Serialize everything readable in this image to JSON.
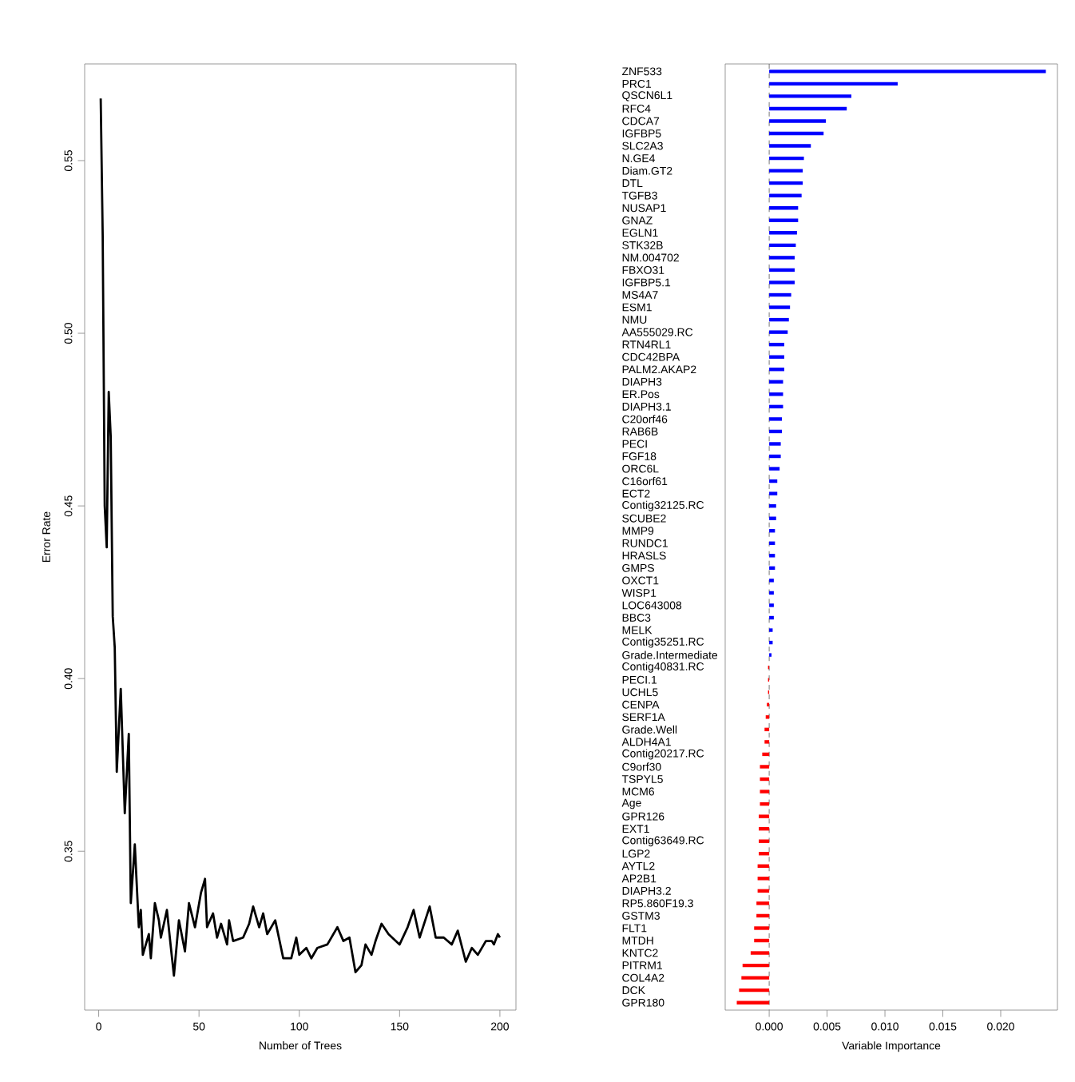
{
  "chart_data": [
    {
      "type": "line",
      "xlabel": "Number of Trees",
      "ylabel": "Error Rate",
      "x": [
        1,
        2,
        3,
        4,
        5,
        6,
        7,
        8,
        9,
        11,
        13,
        15,
        16,
        18,
        20,
        21,
        22,
        25,
        26,
        28,
        30,
        31,
        34,
        36,
        37.5,
        40,
        43,
        45,
        48,
        51,
        53,
        54,
        57,
        59,
        61,
        64,
        65,
        67,
        72,
        75,
        77,
        80,
        82,
        84,
        88,
        92,
        96,
        98.5,
        100,
        103.5,
        106,
        109,
        114,
        119,
        122,
        125,
        128,
        131,
        133,
        136,
        138,
        141,
        144.5,
        150,
        154,
        157,
        160,
        165,
        168,
        172,
        176,
        179,
        183,
        186,
        189,
        193,
        196,
        197,
        199,
        200
      ],
      "series": [
        {
          "color": "#000000",
          "values": [
            0.568,
            0.528,
            0.45,
            0.438,
            0.483,
            0.47,
            0.418,
            0.409,
            0.373,
            0.397,
            0.361,
            0.384,
            0.335,
            0.352,
            0.328,
            0.333,
            0.32,
            0.326,
            0.319,
            0.335,
            0.33,
            0.325,
            0.333,
            0.322,
            0.314,
            0.33,
            0.321,
            0.335,
            0.328,
            0.338,
            0.342,
            0.328,
            0.332,
            0.325,
            0.329,
            0.323,
            0.33,
            0.324,
            0.325,
            0.329,
            0.334,
            0.328,
            0.332,
            0.326,
            0.33,
            0.319,
            0.319,
            0.325,
            0.32,
            0.322,
            0.319,
            0.322,
            0.323,
            0.328,
            0.324,
            0.325,
            0.315,
            0.317,
            0.323,
            0.32,
            0.324,
            0.329,
            0.326,
            0.323,
            0.328,
            0.333,
            0.325,
            0.334,
            0.325,
            0.325,
            0.323,
            0.327,
            0.318,
            0.322,
            0.32,
            0.324,
            0.324,
            0.323,
            0.326,
            0.325
          ]
        }
      ],
      "xlim": [
        -7,
        208
      ],
      "ylim": [
        0.304,
        0.578
      ],
      "xticks": [
        0,
        50,
        100,
        150,
        200
      ],
      "yticks": [
        {
          "value": 0.35,
          "label": "0.35"
        },
        {
          "value": 0.4,
          "label": "0.40"
        },
        {
          "value": 0.45,
          "label": "0.45"
        },
        {
          "value": 0.5,
          "label": "0.50"
        },
        {
          "value": 0.55,
          "label": "0.55"
        }
      ],
      "marker": "none",
      "line_style": "solid",
      "grid": false
    },
    {
      "type": "bar",
      "orientation": "horizontal",
      "xlabel": "Variable Importance",
      "categories": [
        "ZNF533",
        "PRC1",
        "QSCN6L1",
        "RFC4",
        "CDCA7",
        "IGFBP5",
        "SLC2A3",
        "N.GE4",
        "Diam.GT2",
        "DTL",
        "TGFB3",
        "NUSAP1",
        "GNAZ",
        "EGLN1",
        "STK32B",
        "NM.004702",
        "FBXO31",
        "IGFBP5.1",
        "MS4A7",
        "ESM1",
        "NMU",
        "AA555029.RC",
        "RTN4RL1",
        "CDC42BPA",
        "PALM2.AKAP2",
        "DIAPH3",
        "ER.Pos",
        "DIAPH3.1",
        "C20orf46",
        "RAB6B",
        "PECI",
        "FGF18",
        "ORC6L",
        "C16orf61",
        "ECT2",
        "Contig32125.RC",
        "SCUBE2",
        "MMP9",
        "RUNDC1",
        "HRASLS",
        "GMPS",
        "OXCT1",
        "WISP1",
        "LOC643008",
        "BBC3",
        "MELK",
        "Contig35251.RC",
        "Grade.Intermediate",
        "Contig40831.RC",
        "PECI.1",
        "UCHL5",
        "CENPA",
        "SERF1A",
        "Grade.Well",
        "ALDH4A1",
        "Contig20217.RC",
        "C9orf30",
        "TSPYL5",
        "MCM6",
        "Age",
        "GPR126",
        "EXT1",
        "Contig63649.RC",
        "LGP2",
        "AYTL2",
        "AP2B1",
        "DIAPH3.2",
        "RP5.860F19.3",
        "GSTM3",
        "FLT1",
        "MTDH",
        "KNTC2",
        "PITRM1",
        "COL4A2",
        "DCK",
        "GPR180"
      ],
      "values": [
        0.0239,
        0.0111,
        0.0071,
        0.0067,
        0.0049,
        0.0047,
        0.0036,
        0.003,
        0.0029,
        0.0029,
        0.0028,
        0.0025,
        0.0025,
        0.0024,
        0.0023,
        0.0022,
        0.0022,
        0.0022,
        0.0019,
        0.0018,
        0.0017,
        0.0016,
        0.0013,
        0.0013,
        0.0013,
        0.0012,
        0.0012,
        0.0012,
        0.0011,
        0.0011,
        0.001,
        0.001,
        0.0009,
        0.0007,
        0.0007,
        0.0006,
        0.0006,
        0.0005,
        0.0005,
        0.0005,
        0.0005,
        0.0004,
        0.0004,
        0.0004,
        0.0004,
        0.0003,
        0.0003,
        0.0002,
        -0.0001,
        -0.0001,
        -0.0001,
        -0.0002,
        -0.0003,
        -0.0004,
        -0.0004,
        -0.0006,
        -0.0008,
        -0.0008,
        -0.0008,
        -0.0008,
        -0.0009,
        -0.0009,
        -0.0009,
        -0.0009,
        -0.001,
        -0.001,
        -0.001,
        -0.0011,
        -0.0011,
        -0.0013,
        -0.0013,
        -0.0016,
        -0.0023,
        -0.0024,
        -0.0026,
        -0.0028
      ],
      "colors": [
        "#0000ff",
        "#0000ff",
        "#0000ff",
        "#0000ff",
        "#0000ff",
        "#0000ff",
        "#0000ff",
        "#0000ff",
        "#0000ff",
        "#0000ff",
        "#0000ff",
        "#0000ff",
        "#0000ff",
        "#0000ff",
        "#0000ff",
        "#0000ff",
        "#0000ff",
        "#0000ff",
        "#0000ff",
        "#0000ff",
        "#0000ff",
        "#0000ff",
        "#0000ff",
        "#0000ff",
        "#0000ff",
        "#0000ff",
        "#0000ff",
        "#0000ff",
        "#0000ff",
        "#0000ff",
        "#0000ff",
        "#0000ff",
        "#0000ff",
        "#0000ff",
        "#0000ff",
        "#0000ff",
        "#0000ff",
        "#0000ff",
        "#0000ff",
        "#0000ff",
        "#0000ff",
        "#0000ff",
        "#0000ff",
        "#0000ff",
        "#0000ff",
        "#0000ff",
        "#0000ff",
        "#0000ff",
        "#ff0000",
        "#ff0000",
        "#ff0000",
        "#ff0000",
        "#ff0000",
        "#ff0000",
        "#ff0000",
        "#ff0000",
        "#ff0000",
        "#ff0000",
        "#ff0000",
        "#ff0000",
        "#ff0000",
        "#ff0000",
        "#ff0000",
        "#ff0000",
        "#ff0000",
        "#ff0000",
        "#ff0000",
        "#ff0000",
        "#ff0000",
        "#ff0000",
        "#ff0000",
        "#ff0000",
        "#ff0000",
        "#ff0000",
        "#ff0000",
        "#ff0000"
      ],
      "xlim": [
        -0.0038,
        0.0249
      ],
      "xticks": [
        {
          "value": 0,
          "label": "0.000"
        },
        {
          "value": 0.005,
          "label": "0.005"
        },
        {
          "value": 0.01,
          "label": "0.010"
        },
        {
          "value": 0.015,
          "label": "0.015"
        },
        {
          "value": 0.02,
          "label": "0.020"
        }
      ],
      "ref_lines": [
        {
          "axis": "x",
          "value": 0,
          "color": "#555555",
          "line_style": "dashed"
        }
      ],
      "grid": false
    }
  ]
}
